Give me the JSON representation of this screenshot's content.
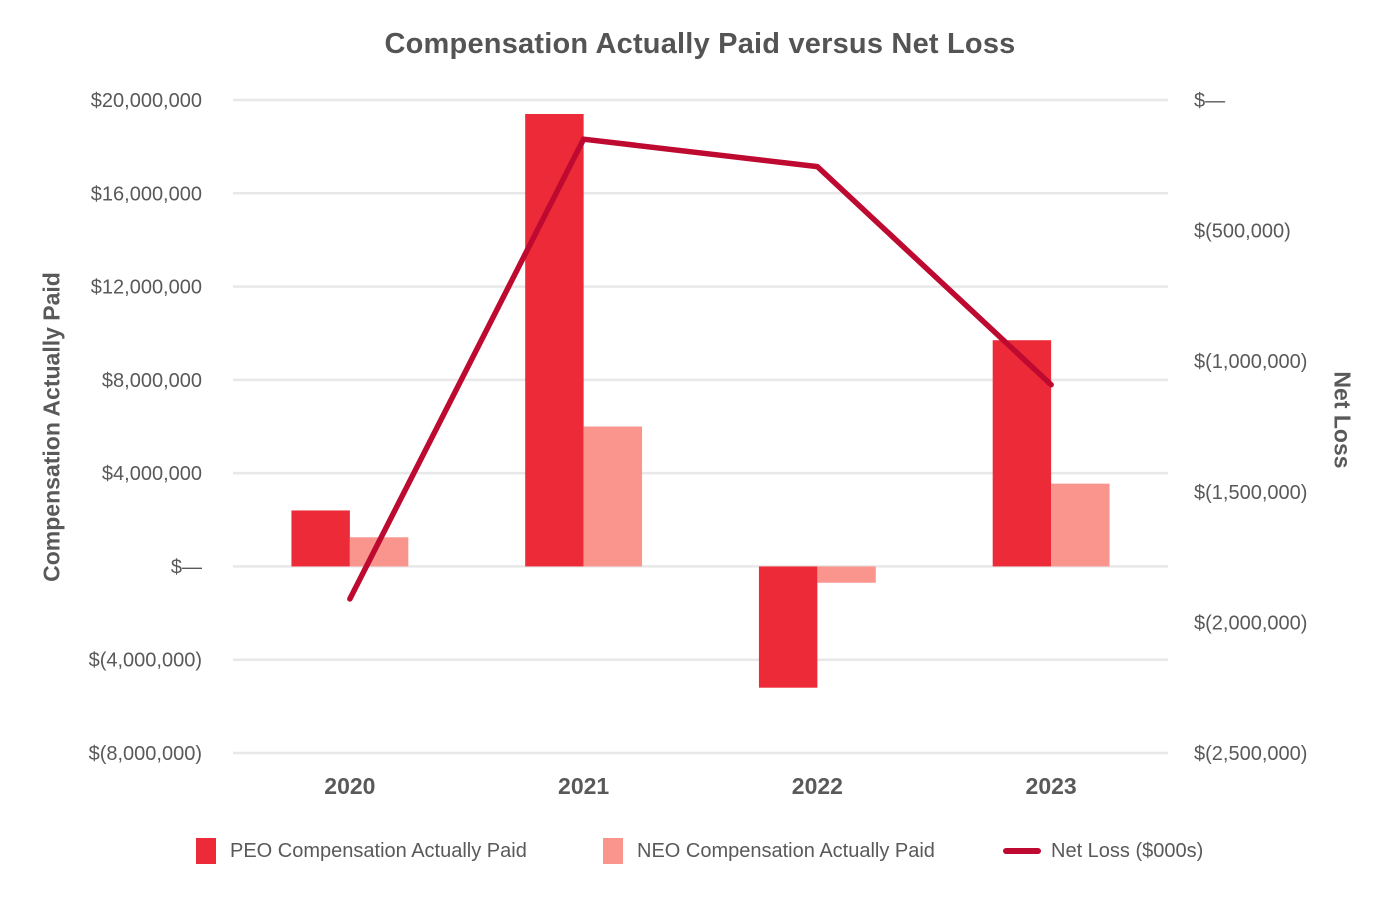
{
  "chart_data": {
    "type": "bar",
    "title": "Compensation Actually Paid versus Net Loss",
    "categories": [
      "2020",
      "2021",
      "2022",
      "2023"
    ],
    "series": [
      {
        "name": "PEO Compensation Actually Paid",
        "type": "bar",
        "axis": "left",
        "color_key": "peo",
        "values": [
          2400000,
          19400000,
          -5200000,
          9700000
        ]
      },
      {
        "name": "NEO Compensation Actually Paid",
        "type": "bar",
        "axis": "left",
        "color_key": "neo",
        "values": [
          1250000,
          6000000,
          -700000,
          3550000
        ]
      },
      {
        "name": "Net Loss ($000s)",
        "type": "line",
        "axis": "right",
        "color_key": "line",
        "values": [
          -1910000,
          -150000,
          -255000,
          -1090000
        ]
      }
    ],
    "left_axis": {
      "title": "Compensation Actually Paid",
      "min": -8000000,
      "max": 20000000,
      "ticks": [
        {
          "value": 20000000,
          "label": "$20,000,000"
        },
        {
          "value": 16000000,
          "label": "$16,000,000"
        },
        {
          "value": 12000000,
          "label": "$12,000,000"
        },
        {
          "value": 8000000,
          "label": "$8,000,000"
        },
        {
          "value": 4000000,
          "label": "$4,000,000"
        },
        {
          "value": 0,
          "label": "$—"
        },
        {
          "value": -4000000,
          "label": "$(4,000,000)"
        },
        {
          "value": -8000000,
          "label": "$(8,000,000)"
        }
      ]
    },
    "right_axis": {
      "title": "Net Loss",
      "min": -2500000,
      "max": 0,
      "ticks": [
        {
          "value": 0,
          "label": "$—"
        },
        {
          "value": -500000,
          "label": "$(500,000)"
        },
        {
          "value": -1000000,
          "label": "$(1,000,000)"
        },
        {
          "value": -1500000,
          "label": "$(1,500,000)"
        },
        {
          "value": -2000000,
          "label": "$(2,000,000)"
        },
        {
          "value": -2500000,
          "label": "$(2,500,000)"
        }
      ]
    },
    "grid": "horizontal-only",
    "legend_position": "bottom",
    "colors": {
      "peo": "#ED2B38",
      "neo": "#FA958E",
      "line": "#BE0A31",
      "grid": "#E8E8E8",
      "text": "#595959",
      "title_text": "#545454"
    }
  }
}
